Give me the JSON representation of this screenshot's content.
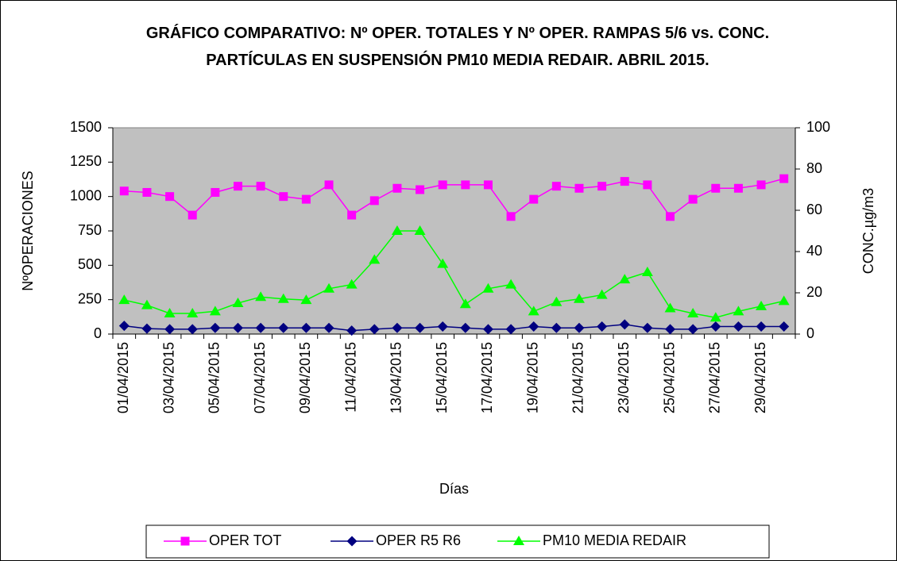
{
  "chart_data": {
    "type": "line",
    "title": "GRÁFICO COMPARATIVO: Nº OPER. TOTALES Y Nº OPER. RAMPAS 5/6 vs. CONC. PARTÍCULAS EN SUSPENSIÓN PM10 MEDIA REDAIR. ABRIL 2015.",
    "x_label": "Días",
    "y_label": "NºOPERACIONES",
    "y2_label": "CONC.µg/m3",
    "categories": [
      "01/04/2015",
      null,
      "03/04/2015",
      null,
      "05/04/2015",
      null,
      "07/04/2015",
      null,
      "09/04/2015",
      null,
      "11/04/2015",
      null,
      "13/04/2015",
      null,
      "15/04/2015",
      null,
      "17/04/2015",
      null,
      "19/04/2015",
      null,
      "21/04/2015",
      null,
      "23/04/2015",
      null,
      "25/04/2015",
      null,
      "27/04/2015",
      null,
      "29/04/2015",
      null
    ],
    "series": [
      {
        "name": "OPER TOT",
        "color": "#ff00ff",
        "marker": "square",
        "values": [
          1040,
          1030,
          1000,
          865,
          1030,
          1075,
          1075,
          1000,
          980,
          1085,
          865,
          970,
          1060,
          1050,
          1085,
          1085,
          1085,
          855,
          980,
          1075,
          1060,
          1075,
          1110,
          1085,
          855,
          980,
          1060,
          1060,
          1085,
          1130
        ]
      },
      {
        "name": "OPER R5 R6",
        "color": "#000080",
        "marker": "diamond",
        "values": [
          60,
          40,
          35,
          35,
          45,
          45,
          45,
          45,
          45,
          45,
          25,
          35,
          45,
          45,
          55,
          45,
          35,
          35,
          55,
          45,
          45,
          55,
          70,
          45,
          35,
          35,
          55,
          55,
          55,
          55
        ]
      },
      {
        "name": "PM10 MEDIA REDAIR",
        "color": "#00ff00",
        "marker": "triangle",
        "axis": "y2",
        "values": [
          16.5,
          14,
          10,
          10,
          11,
          15,
          18,
          17,
          16.5,
          22,
          24,
          36,
          50,
          50,
          34,
          14.5,
          22,
          24,
          11,
          15.5,
          17,
          19,
          26.5,
          30,
          12.5,
          10,
          8,
          11,
          13.5,
          16
        ]
      }
    ],
    "ylim": [
      0,
      1500
    ],
    "yticks": [
      0,
      250,
      500,
      750,
      1000,
      1250,
      1500
    ],
    "y2lim": [
      0,
      100
    ],
    "y2ticks": [
      0,
      20,
      40,
      60,
      80,
      100
    ],
    "grid": false,
    "legend": "bottom",
    "plot_background": "#c0c0c0"
  }
}
